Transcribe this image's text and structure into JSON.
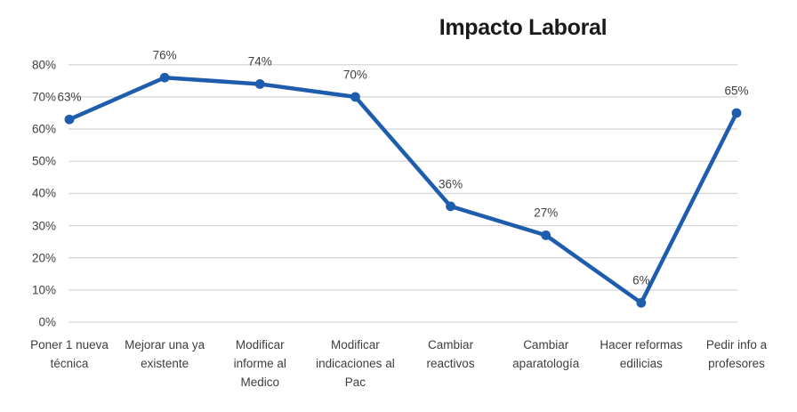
{
  "chart_data": {
    "type": "line",
    "title": "Impacto Laboral",
    "categories": [
      "Poner 1 nueva\ntécnica",
      "Mejorar una ya\nexistente",
      "Modificar\ninforme al\nMedico",
      "Modificar\nindicaciones al\nPac",
      "Cambiar\nreactivos",
      "Cambiar\naparatología",
      "Hacer reformas\nedilicias",
      "Pedir info a\nprofesores"
    ],
    "values": [
      63,
      76,
      74,
      70,
      36,
      27,
      6,
      65
    ],
    "data_labels": [
      "63%",
      "76%",
      "74%",
      "70%",
      "36%",
      "27%",
      "6%",
      "65%"
    ],
    "y_axis": {
      "tick_labels": [
        "0%",
        "10%",
        "20%",
        "30%",
        "40%",
        "50%",
        "60%",
        "70%",
        "80%"
      ],
      "tick_values": [
        0,
        10,
        20,
        30,
        40,
        50,
        60,
        70,
        80
      ],
      "min": 0,
      "max": 80
    },
    "xlabel": "",
    "ylabel": "",
    "grid": "horizontal",
    "legend": "none",
    "marker": "circle",
    "colors": {
      "line": "#1e5dad",
      "marker": "#1e5dad",
      "gridline": "#d6d6d6",
      "axis_text": "#404040",
      "title_text": "#1a1a1a",
      "background": "#ffffff"
    }
  }
}
